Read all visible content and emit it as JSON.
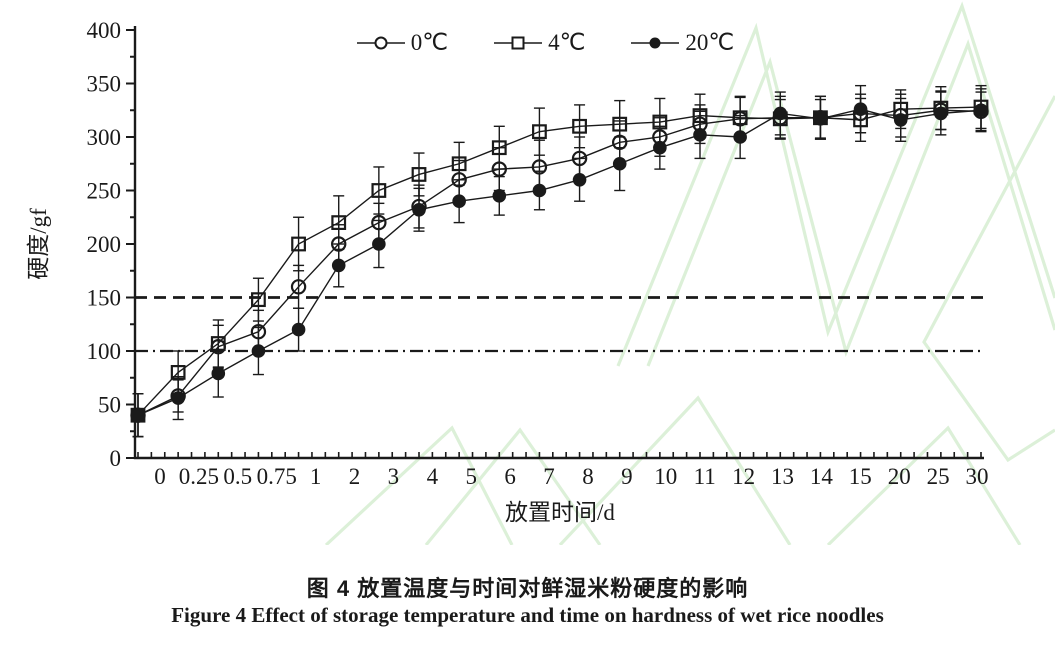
{
  "chart_data": {
    "type": "line",
    "title": "",
    "xlabel": "放置时间/d",
    "ylabel": "硬度/gf",
    "ylim": [
      0,
      400
    ],
    "ytick_interval": 50,
    "grid": false,
    "legend_position": "top-center",
    "error_bars": true,
    "categories": [
      "0",
      "0.25",
      "0.5",
      "0.75",
      "1",
      "2",
      "3",
      "4",
      "5",
      "6",
      "7",
      "8",
      "9",
      "10",
      "11",
      "12",
      "13",
      "14",
      "15",
      "20",
      "25",
      "30"
    ],
    "series": [
      {
        "name": "0℃",
        "marker": "open-circle",
        "values": [
          40,
          58,
          104,
          118,
          160,
          200,
          220,
          235,
          260,
          270,
          272,
          280,
          295,
          300,
          312,
          317,
          318,
          318,
          322,
          320,
          325,
          324
        ],
        "errors": [
          20,
          15,
          20,
          20,
          20,
          18,
          18,
          20,
          18,
          20,
          25,
          20,
          20,
          18,
          18,
          20,
          20,
          20,
          18,
          20,
          18,
          18
        ]
      },
      {
        "name": "4℃",
        "marker": "open-square",
        "values": [
          40,
          80,
          107,
          148,
          200,
          220,
          250,
          265,
          275,
          290,
          305,
          310,
          312,
          314,
          320,
          318,
          317,
          318,
          316,
          326,
          327,
          328
        ],
        "errors": [
          20,
          20,
          22,
          20,
          25,
          25,
          22,
          20,
          20,
          20,
          22,
          20,
          22,
          22,
          20,
          20,
          18,
          20,
          20,
          18,
          20,
          20
        ]
      },
      {
        "name": "20℃",
        "marker": "filled-circle",
        "values": [
          40,
          56,
          79,
          100,
          120,
          180,
          200,
          232,
          240,
          245,
          250,
          260,
          275,
          290,
          302,
          300,
          322,
          317,
          326,
          316,
          322,
          325
        ],
        "errors": [
          20,
          20,
          22,
          22,
          20,
          20,
          22,
          20,
          20,
          18,
          18,
          20,
          25,
          20,
          22,
          20,
          20,
          18,
          22,
          20,
          20,
          20
        ]
      }
    ],
    "reference_lines": [
      {
        "y": 150,
        "style": "dashed"
      },
      {
        "y": 100,
        "style": "dash-dot"
      }
    ]
  },
  "figure": {
    "caption_zh": "图 4  放置温度与时间对鲜湿米粉硬度的影响",
    "caption_en": "Figure 4  Effect of storage temperature and time on hardness of wet rice noodles"
  },
  "colors": {
    "ink": "#1a1a1a",
    "watermark": "#dcf0d8",
    "background": "#ffffff"
  }
}
